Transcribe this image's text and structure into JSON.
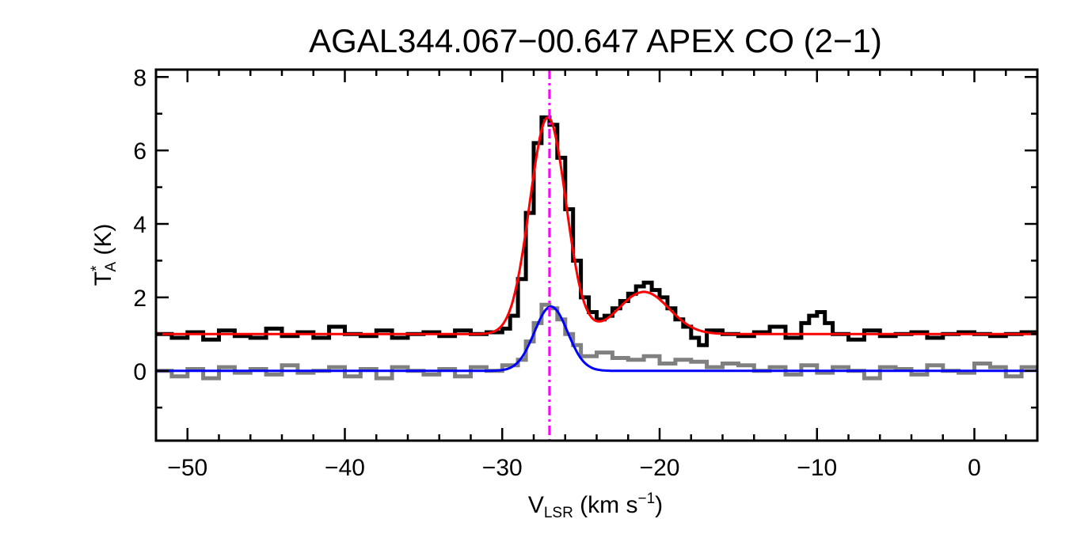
{
  "chart_data": {
    "type": "line",
    "title": "AGAL344.067−00.647  APEX CO (2−1)",
    "xlabel": {
      "main": "V",
      "sub": "LSR",
      "unit": " (km s",
      "sup": "−1",
      "close": ")"
    },
    "ylabel": {
      "main": "T",
      "sup": "*",
      "sub": "A",
      "unit": " (K)"
    },
    "xlim": [
      -52,
      4
    ],
    "ylim": [
      -1.9,
      8.2
    ],
    "x_ticks": [
      {
        "value": -50,
        "label": "−50"
      },
      {
        "value": -40,
        "label": "−40"
      },
      {
        "value": -30,
        "label": "−30"
      },
      {
        "value": -20,
        "label": "−20"
      },
      {
        "value": -10,
        "label": "−10"
      },
      {
        "value": 0,
        "label": "0"
      }
    ],
    "y_ticks": [
      {
        "value": 0,
        "label": "0"
      },
      {
        "value": 2,
        "label": "2"
      },
      {
        "value": 4,
        "label": "4"
      },
      {
        "value": 6,
        "label": "6"
      },
      {
        "value": 8,
        "label": "8"
      }
    ],
    "y_minor_ticks": [
      -1,
      1,
      3,
      5,
      7
    ],
    "x_minor_step": 2,
    "reference_line": {
      "x": -27.0,
      "color": "#ff00ff",
      "style": "dash-dot"
    },
    "series": [
      {
        "kind": "step",
        "color": "#000000",
        "x": [
          -52,
          -51,
          -50,
          -49,
          -48,
          -47,
          -46,
          -45,
          -44,
          -43,
          -42,
          -41,
          -40,
          -39,
          -38,
          -37,
          -36,
          -35,
          -34,
          -33,
          -32,
          -31,
          -30,
          -29.5,
          -29,
          -28.5,
          -28,
          -27.5,
          -27,
          -26.5,
          -26,
          -25.5,
          -25,
          -24.5,
          -24,
          -23.5,
          -23,
          -22.5,
          -22,
          -21.5,
          -21,
          -20.5,
          -20,
          -19.5,
          -19,
          -18.5,
          -18,
          -17.5,
          -17,
          -16,
          -15,
          -14,
          -13,
          -12,
          -11,
          -10.5,
          -10,
          -9.5,
          -9,
          -8,
          -7,
          -6,
          -5,
          -4,
          -3,
          -2,
          -1,
          0,
          1,
          2,
          3,
          4
        ],
        "y": [
          1.0,
          0.9,
          1.05,
          0.85,
          1.1,
          0.95,
          0.9,
          1.15,
          0.95,
          1.05,
          0.9,
          1.2,
          1.0,
          0.95,
          1.1,
          0.9,
          1.0,
          1.05,
          0.95,
          1.1,
          1.0,
          1.05,
          1.15,
          1.5,
          2.5,
          4.3,
          6.2,
          6.9,
          6.7,
          5.8,
          4.4,
          3.0,
          2.0,
          1.6,
          1.4,
          1.5,
          1.7,
          1.9,
          2.1,
          2.3,
          2.4,
          2.2,
          2.0,
          1.7,
          1.4,
          1.2,
          0.9,
          0.7,
          1.1,
          1.0,
          0.95,
          1.05,
          1.2,
          0.9,
          1.3,
          1.5,
          1.6,
          1.3,
          1.0,
          0.85,
          1.1,
          0.95,
          1.0,
          1.05,
          0.9,
          1.0,
          1.05,
          1.0,
          0.95,
          1.0,
          1.05,
          1.0
        ]
      },
      {
        "kind": "step",
        "color": "#808080",
        "x": [
          -52,
          -51,
          -50,
          -49,
          -48,
          -47,
          -46,
          -45,
          -44,
          -43,
          -42,
          -41,
          -40,
          -39,
          -38,
          -37,
          -36,
          -35,
          -34,
          -33,
          -32,
          -31,
          -30,
          -29,
          -28.5,
          -28,
          -27.5,
          -27,
          -26.5,
          -26,
          -25.5,
          -25,
          -24,
          -23,
          -22,
          -21,
          -20,
          -19,
          -18,
          -17,
          -16,
          -15,
          -14,
          -13,
          -12,
          -11,
          -10,
          -9,
          -8,
          -7,
          -6,
          -5,
          -4,
          -3,
          -2,
          -1,
          0,
          1,
          2,
          3,
          4
        ],
        "y": [
          0.0,
          -0.15,
          0.05,
          -0.2,
          0.1,
          -0.05,
          0.05,
          -0.1,
          0.15,
          -0.05,
          0.0,
          0.1,
          -0.15,
          0.05,
          -0.2,
          0.1,
          0.0,
          -0.1,
          0.05,
          -0.15,
          0.1,
          0.0,
          0.15,
          0.3,
          0.8,
          1.3,
          1.8,
          1.7,
          1.4,
          1.0,
          0.7,
          0.4,
          0.5,
          0.35,
          0.3,
          0.4,
          0.2,
          0.3,
          0.25,
          0.1,
          0.2,
          0.15,
          0.0,
          0.1,
          -0.1,
          0.15,
          -0.05,
          0.1,
          0.0,
          -0.2,
          0.1,
          0.05,
          -0.1,
          0.15,
          0.0,
          -0.05,
          0.2,
          0.1,
          -0.15,
          0.1,
          0.0
        ]
      },
      {
        "kind": "fit",
        "color": "#ff0000",
        "baseline": 1.0,
        "components": [
          {
            "amplitude": 5.9,
            "center": -27.1,
            "sigma": 1.15
          },
          {
            "amplitude": 1.15,
            "center": -21.0,
            "sigma": 1.6
          }
        ]
      },
      {
        "kind": "fit",
        "color": "#0000ff",
        "baseline": 0.0,
        "components": [
          {
            "amplitude": 1.75,
            "center": -26.9,
            "sigma": 1.05
          }
        ]
      }
    ],
    "colors": {
      "frame": "#000000",
      "background": "#ffffff"
    }
  }
}
